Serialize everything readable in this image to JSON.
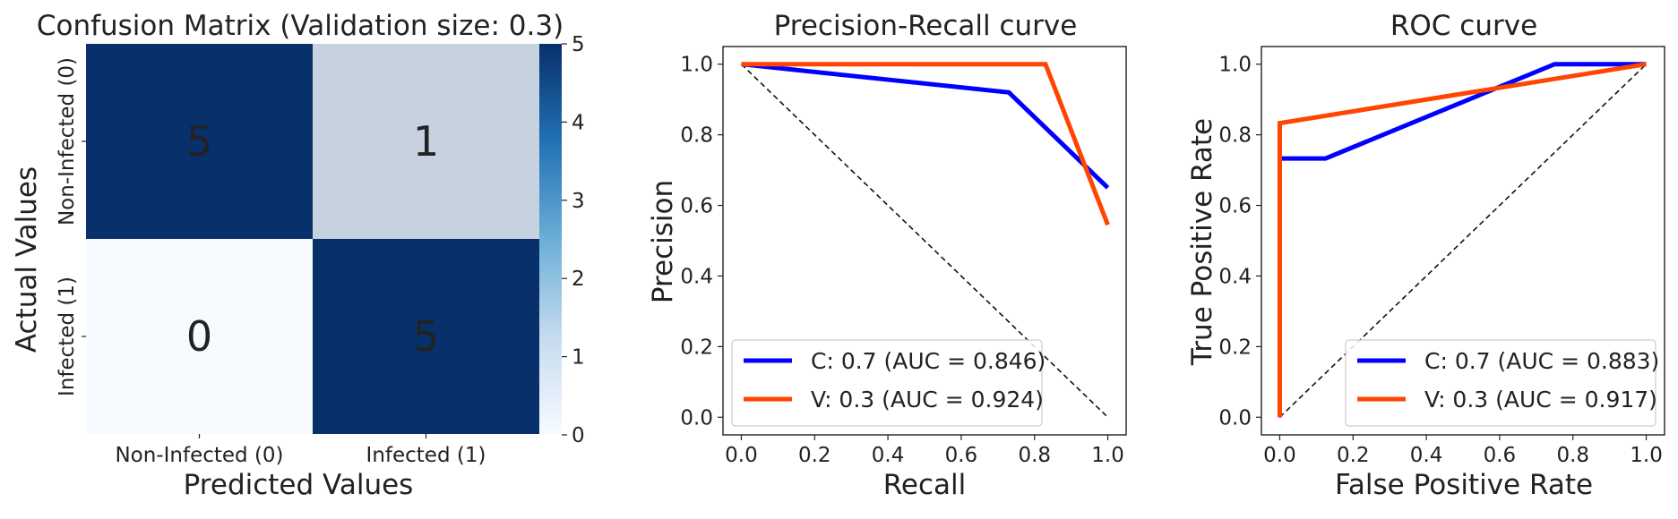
{
  "chart_data": [
    {
      "type": "heatmap",
      "title": "Confusion Matrix (Validation size: 0.3)",
      "xlabel": "Predicted Values",
      "ylabel": "Actual Values",
      "x_categories": [
        "Non-Infected (0)",
        "Infected (1)"
      ],
      "y_categories": [
        "Non-Infected (0)",
        "Infected (1)"
      ],
      "values": [
        [
          5,
          1
        ],
        [
          0,
          5
        ]
      ],
      "colorbar": {
        "range": [
          0,
          5
        ],
        "ticks": [
          "0",
          "1",
          "2",
          "3",
          "4",
          "5"
        ]
      },
      "colormap": {
        "low": "#f7fbff",
        "high": "#08306b"
      }
    },
    {
      "type": "line",
      "title": "Precision-Recall curve",
      "xlabel": "Recall",
      "ylabel": "Precision",
      "xlim": [
        0,
        1
      ],
      "ylim": [
        0,
        1
      ],
      "xticks": [
        "0.0",
        "0.2",
        "0.4",
        "0.6",
        "0.8",
        "1.0"
      ],
      "yticks": [
        "0.0",
        "0.2",
        "0.4",
        "0.6",
        "0.8",
        "1.0"
      ],
      "legend_position": "lower-left",
      "series": [
        {
          "name": "C: 0.7 (AUC = 0.846)",
          "color": "#0000ff",
          "x": [
            0,
            0.73,
            1.0
          ],
          "y": [
            1.0,
            0.92,
            0.65
          ]
        },
        {
          "name": "V: 0.3 (AUC = 0.924)",
          "color": "#ff4500",
          "x": [
            0,
            0.83,
            1.0
          ],
          "y": [
            1.0,
            1.0,
            0.545
          ]
        }
      ],
      "reference_line": {
        "x": [
          0,
          1
        ],
        "y": [
          1,
          0
        ],
        "style": "dashed"
      }
    },
    {
      "type": "line",
      "title": "ROC curve",
      "xlabel": "False Positive Rate",
      "ylabel": "True Positive Rate",
      "xlim": [
        0,
        1
      ],
      "ylim": [
        0,
        1
      ],
      "xticks": [
        "0.0",
        "0.2",
        "0.4",
        "0.6",
        "0.8",
        "1.0"
      ],
      "yticks": [
        "0.0",
        "0.2",
        "0.4",
        "0.6",
        "0.8",
        "1.0"
      ],
      "legend_position": "lower-right",
      "series": [
        {
          "name": "C: 0.7 (AUC = 0.883)",
          "color": "#0000ff",
          "x": [
            0,
            0,
            0.125,
            0.75,
            1.0
          ],
          "y": [
            0,
            0.733,
            0.733,
            1.0,
            1.0
          ]
        },
        {
          "name": "V: 0.3 (AUC = 0.917)",
          "color": "#ff4500",
          "x": [
            0,
            0,
            1.0
          ],
          "y": [
            0,
            0.833,
            1.0
          ]
        }
      ],
      "reference_line": {
        "x": [
          0,
          1
        ],
        "y": [
          0,
          1
        ],
        "style": "dashed"
      }
    }
  ]
}
